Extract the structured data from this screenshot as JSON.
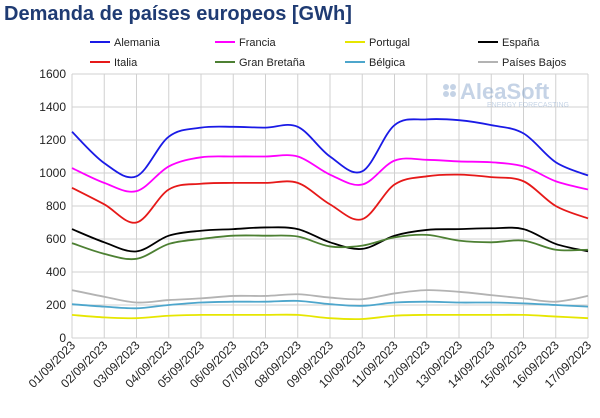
{
  "chart_data": {
    "type": "line",
    "title": "Demanda de países europeos [GWh]",
    "watermark": {
      "brand": "AleaSoft",
      "tagline": "ENERGY FORECASTING"
    },
    "x": [
      "01/09/2023",
      "02/09/2023",
      "03/09/2023",
      "04/09/2023",
      "05/09/2023",
      "06/09/2023",
      "07/09/2023",
      "08/09/2023",
      "09/09/2023",
      "10/09/2023",
      "11/09/2023",
      "12/09/2023",
      "13/09/2023",
      "14/09/2023",
      "15/09/2023",
      "16/09/2023",
      "17/09/2023"
    ],
    "ylim": [
      0,
      1600
    ],
    "yticks": [
      0,
      200,
      400,
      600,
      800,
      1000,
      1200,
      1400,
      1600
    ],
    "grid": true,
    "legend_position": "top",
    "series": [
      {
        "name": "Alemania",
        "color": "#1a1ae6",
        "values": [
          1250,
          1060,
          980,
          1220,
          1275,
          1280,
          1275,
          1280,
          1100,
          1010,
          1290,
          1325,
          1320,
          1290,
          1240,
          1065,
          985
        ]
      },
      {
        "name": "Francia",
        "color": "#ff00ff",
        "values": [
          1030,
          940,
          890,
          1040,
          1095,
          1100,
          1100,
          1100,
          990,
          930,
          1075,
          1080,
          1070,
          1065,
          1040,
          950,
          900
        ]
      },
      {
        "name": "Portugal",
        "color": "#e6e600",
        "values": [
          140,
          125,
          120,
          135,
          140,
          140,
          140,
          140,
          120,
          115,
          135,
          140,
          140,
          140,
          140,
          130,
          120
        ]
      },
      {
        "name": "España",
        "color": "#000000",
        "values": [
          660,
          580,
          525,
          620,
          650,
          660,
          670,
          660,
          580,
          540,
          620,
          655,
          660,
          665,
          660,
          570,
          525
        ]
      },
      {
        "name": "Italia",
        "color": "#e61919",
        "values": [
          910,
          810,
          700,
          900,
          935,
          940,
          940,
          940,
          810,
          720,
          930,
          980,
          990,
          975,
          950,
          800,
          725
        ]
      },
      {
        "name": "Gran Bretaña",
        "color": "#4d8033",
        "values": [
          575,
          510,
          480,
          570,
          600,
          620,
          620,
          615,
          555,
          560,
          610,
          625,
          590,
          580,
          590,
          535,
          535
        ]
      },
      {
        "name": "Bélgica",
        "color": "#4da6cc",
        "values": [
          205,
          190,
          180,
          200,
          215,
          220,
          220,
          225,
          205,
          195,
          215,
          220,
          215,
          215,
          210,
          200,
          190
        ]
      },
      {
        "name": "Países Bajos",
        "color": "#b3b3b3",
        "values": [
          290,
          250,
          215,
          230,
          240,
          255,
          255,
          265,
          245,
          235,
          270,
          290,
          280,
          260,
          240,
          220,
          255
        ]
      }
    ]
  }
}
